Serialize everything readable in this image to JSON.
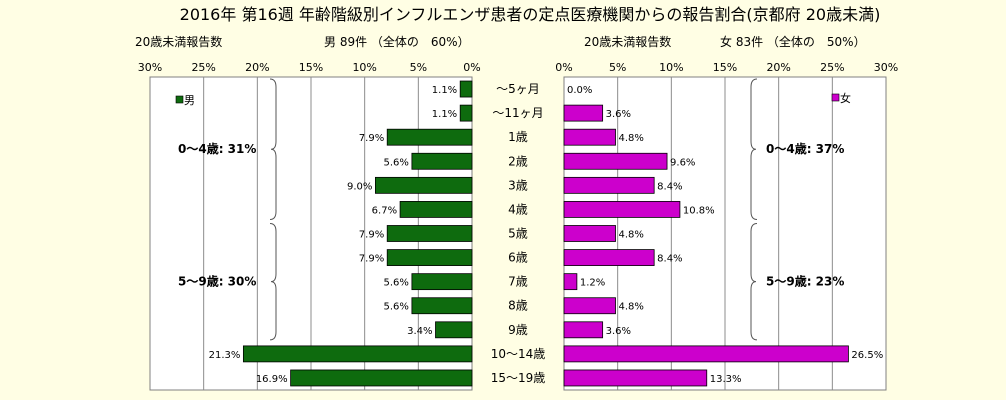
{
  "title": "2016年 第16週 年齢階級別インフルエンザ患者の定点医療機関からの報告割合(京都府 20歳未満)",
  "left": {
    "header_left": "20歳未満報告数",
    "header_right": "男 89件 （全体の　60%）",
    "legend": "男",
    "color": "#0e6b0e",
    "groups": [
      {
        "label": "0～4歳: 31%",
        "from": 0,
        "to": 5
      },
      {
        "label": "5～9歳: 30%",
        "from": 6,
        "to": 10
      }
    ]
  },
  "right": {
    "header_left": "20歳未満報告数",
    "header_right": "女 83件 （全体の　50%）",
    "legend": "女",
    "color": "#cc00cc",
    "groups": [
      {
        "label": "0～4歳: 37%",
        "from": 0,
        "to": 5
      },
      {
        "label": "5～9歳: 23%",
        "from": 6,
        "to": 10
      }
    ]
  },
  "chart_data": {
    "type": "bar",
    "title": "2016年 第16週 年齢階級別インフルエンザ患者の定点医療機関からの報告割合(京都府 20歳未満)",
    "categories": [
      "～5ヶ月",
      "～11ヶ月",
      "1歳",
      "2歳",
      "3歳",
      "4歳",
      "5歳",
      "6歳",
      "7歳",
      "8歳",
      "9歳",
      "10～14歳",
      "15～19歳"
    ],
    "xlim": [
      0,
      30
    ],
    "ticks": [
      "0%",
      "5%",
      "10%",
      "15%",
      "20%",
      "25%",
      "30%"
    ],
    "tick_values": [
      0,
      5,
      10,
      15,
      20,
      25,
      30
    ],
    "grid": true,
    "series": [
      {
        "name": "男",
        "direction": "left",
        "values": [
          1.1,
          1.1,
          7.9,
          5.6,
          9.0,
          6.7,
          7.9,
          7.9,
          5.6,
          5.6,
          3.4,
          21.3,
          16.9
        ],
        "labels": [
          "1.1%",
          "1.1%",
          "7.9%",
          "5.6%",
          "9.0%",
          "6.7%",
          "7.9%",
          "7.9%",
          "5.6%",
          "5.6%",
          "3.4%",
          "21.3%",
          "16.9%"
        ]
      },
      {
        "name": "女",
        "direction": "right",
        "values": [
          0.0,
          3.6,
          4.8,
          9.6,
          8.4,
          10.8,
          4.8,
          8.4,
          1.2,
          4.8,
          3.6,
          26.5,
          13.3
        ],
        "labels": [
          "0.0%",
          "3.6%",
          "4.8%",
          "9.6%",
          "8.4%",
          "10.8%",
          "4.8%",
          "8.4%",
          "1.2%",
          "4.8%",
          "3.6%",
          "26.5%",
          "13.3%"
        ]
      }
    ]
  }
}
